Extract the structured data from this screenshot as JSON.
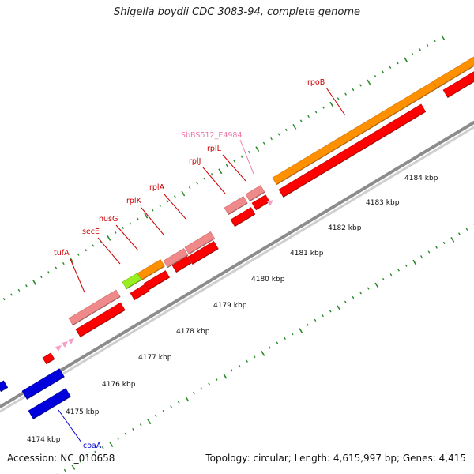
{
  "title": "Shigella boydii CDC 3083-94, complete genome",
  "footer": {
    "accession": "Accession: NC_010658",
    "summary": "Topology: circular; Length: 4,615,997 bp; Genes: 4,415"
  },
  "colors": {
    "gene_red": "#ff0000",
    "gene_pink": "#f08a8a",
    "gene_orange": "#ff9000",
    "gene_green": "#99ee22",
    "gene_blue": "#0000dd",
    "label_red": "#cc0000",
    "label_pink": "#ee77aa",
    "label_blue": "#0000cc",
    "backbone": "#9a9a9a",
    "tick": "#2a8a2a"
  },
  "scale_ticks": [
    "4174 kbp",
    "4175 kbp",
    "4176 kbp",
    "4177 kbp",
    "4178 kbp",
    "4179 kbp",
    "4180 kbp",
    "4181 kbp",
    "4182 kbp",
    "4183 kbp",
    "4184 kbp"
  ],
  "gene_labels": [
    {
      "id": "rpoB",
      "text": "rpoB",
      "color": "label_red"
    },
    {
      "id": "SbBS512_E4984",
      "text": "SbBS512_E4984",
      "color": "label_pink"
    },
    {
      "id": "rplL",
      "text": "rplL",
      "color": "label_red"
    },
    {
      "id": "rplJ",
      "text": "rplJ",
      "color": "label_red"
    },
    {
      "id": "rplA",
      "text": "rplA",
      "color": "label_red"
    },
    {
      "id": "rplK",
      "text": "rplK",
      "color": "label_red"
    },
    {
      "id": "nusG",
      "text": "nusG",
      "color": "label_red"
    },
    {
      "id": "secE",
      "text": "secE",
      "color": "label_red"
    },
    {
      "id": "tufA",
      "text": "tufA",
      "color": "label_red"
    },
    {
      "id": "coaA",
      "text": "coaA",
      "color": "label_blue"
    }
  ]
}
